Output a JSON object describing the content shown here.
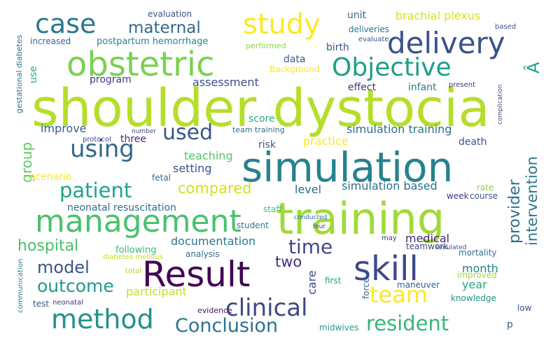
{
  "words": [
    {
      "text": "shoulder dystocia",
      "color": "#b5de2b"
    },
    {
      "text": "simulation",
      "color": "#26828e"
    },
    {
      "text": "training",
      "color": "#a0da39"
    },
    {
      "text": "obstetric",
      "color": "#7ad151"
    },
    {
      "text": "Result",
      "color": "#440154"
    },
    {
      "text": "management",
      "color": "#4ac16d"
    },
    {
      "text": "skill",
      "color": "#3e4989"
    },
    {
      "text": "delivery",
      "color": "#3b528b"
    },
    {
      "text": "method",
      "color": "#21918c"
    },
    {
      "text": "study",
      "color": "#fde725"
    },
    {
      "text": "case",
      "color": "#2a788e"
    },
    {
      "text": "Objective",
      "color": "#1f9e89"
    },
    {
      "text": "using",
      "color": "#31688e"
    },
    {
      "text": "clinical",
      "color": "#3e4989"
    },
    {
      "text": "team",
      "color": "#fde725"
    },
    {
      "text": "patient",
      "color": "#20a486"
    },
    {
      "text": "resident",
      "color": "#35b779"
    },
    {
      "text": "Conclusion",
      "color": "#2c728e"
    },
    {
      "text": "time",
      "color": "#3e4989"
    },
    {
      "text": "used",
      "color": "#38588c"
    },
    {
      "text": "outcome",
      "color": "#1f9a8a"
    },
    {
      "text": "model",
      "color": "#3a538b"
    },
    {
      "text": "maternal",
      "color": "#31688e"
    },
    {
      "text": "hospital",
      "color": "#4ac16d"
    },
    {
      "text": "compared",
      "color": "#d2e21b"
    },
    {
      "text": "provider",
      "color": "#2d708e"
    },
    {
      "text": "intervention",
      "color": "#2a788e"
    },
    {
      "text": "two",
      "color": "#472d7b"
    },
    {
      "text": "group",
      "color": "#5ec962"
    },
    {
      "text": "brachial plexus",
      "color": "#d8e219"
    },
    {
      "text": "simulation training",
      "color": "#2c728e"
    },
    {
      "text": "simulation based",
      "color": "#2d708e"
    },
    {
      "text": "documentation",
      "color": "#2a788e"
    },
    {
      "text": "improve",
      "color": "#34618d"
    },
    {
      "text": "assessment",
      "color": "#3b528b"
    },
    {
      "text": "participant",
      "color": "#c2df23"
    },
    {
      "text": "care",
      "color": "#3e4989"
    },
    {
      "text": "year",
      "color": "#22a785"
    },
    {
      "text": "month",
      "color": "#25848e"
    },
    {
      "text": "medical",
      "color": "#482878"
    },
    {
      "text": "Â",
      "color": "#1fa088"
    },
    {
      "text": "neonatal resuscitation",
      "color": "#2d708e"
    },
    {
      "text": "teaching",
      "color": "#52c569"
    },
    {
      "text": "setting",
      "color": "#3b528b"
    },
    {
      "text": "level",
      "color": "#2f6c8e"
    },
    {
      "text": "practice",
      "color": "#fde725"
    },
    {
      "text": "effect",
      "color": "#46327e"
    },
    {
      "text": "infant",
      "color": "#2a788e"
    },
    {
      "text": "birth",
      "color": "#3a538b"
    },
    {
      "text": "data",
      "color": "#365c8d"
    },
    {
      "text": "program",
      "color": "#453781"
    },
    {
      "text": "score",
      "color": "#25ab82"
    },
    {
      "text": "three",
      "color": "#482576"
    },
    {
      "text": "death",
      "color": "#3b528b"
    },
    {
      "text": "unit",
      "color": "#2f6c8e"
    },
    {
      "text": "use",
      "color": "#29af7f"
    },
    {
      "text": "scenario",
      "color": "#fde725"
    },
    {
      "text": "fetal",
      "color": "#2f6c8e"
    },
    {
      "text": "risk",
      "color": "#3a538b"
    },
    {
      "text": "staff",
      "color": "#44bf70"
    },
    {
      "text": "rate",
      "color": "#86d549"
    },
    {
      "text": "course",
      "color": "#39568c"
    },
    {
      "text": "week",
      "color": "#46337e"
    },
    {
      "text": "student",
      "color": "#2a788e"
    },
    {
      "text": "analysis",
      "color": "#2e6e8e"
    },
    {
      "text": "following",
      "color": "#35b779"
    },
    {
      "text": "teamwork",
      "color": "#3e4989"
    },
    {
      "text": "mortality",
      "color": "#2e6f8e"
    },
    {
      "text": "improved",
      "color": "#a0da39"
    },
    {
      "text": "knowledge",
      "color": "#1f958b"
    },
    {
      "text": "maneuver",
      "color": "#355f8d"
    },
    {
      "text": "first",
      "color": "#20a386"
    },
    {
      "text": "force",
      "color": "#31688e"
    },
    {
      "text": "low",
      "color": "#39568c"
    },
    {
      "text": "p",
      "color": "#33638d"
    },
    {
      "text": "midwives",
      "color": "#1f9e89"
    },
    {
      "text": "evidence",
      "color": "#471063"
    },
    {
      "text": "test",
      "color": "#3b528b"
    },
    {
      "text": "neonatal",
      "color": "#46327e"
    },
    {
      "text": "communication",
      "color": "#26818e"
    },
    {
      "text": "total",
      "color": "#a5db36"
    },
    {
      "text": "diabetes mellitus",
      "color": "#bddf26"
    },
    {
      "text": "postpartum hemorrhage",
      "color": "#26828e"
    },
    {
      "text": "increased",
      "color": "#31688e"
    },
    {
      "text": "evaluation",
      "color": "#3a538b"
    },
    {
      "text": "deliveries",
      "color": "#2a788e"
    },
    {
      "text": "evaluate",
      "color": "#3b528b"
    },
    {
      "text": "performed",
      "color": "#8fd744"
    },
    {
      "text": "Background",
      "color": "#fde725"
    },
    {
      "text": "based",
      "color": "#3b528b"
    },
    {
      "text": "present",
      "color": "#46337e"
    },
    {
      "text": "complication",
      "color": "#3e4989"
    },
    {
      "text": "gestational diabetes",
      "color": "#2c728e"
    },
    {
      "text": "team training",
      "color": "#2e6e8e"
    },
    {
      "text": "number",
      "color": "#3e4989"
    },
    {
      "text": "protocol",
      "color": "#414487"
    },
    {
      "text": "conducted",
      "color": "#2c728e"
    },
    {
      "text": "four",
      "color": "#46327e"
    },
    {
      "text": "may",
      "color": "#46337e"
    },
    {
      "text": "simulated",
      "color": "#3b528b"
    }
  ]
}
